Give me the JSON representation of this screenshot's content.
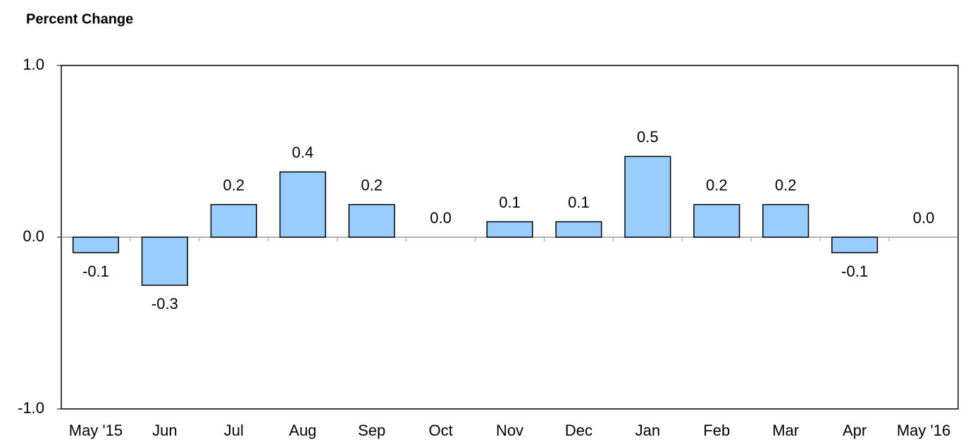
{
  "chart_data": {
    "type": "bar",
    "title": "Percent Change",
    "categories": [
      "May '15",
      "Jun",
      "Jul",
      "Aug",
      "Sep",
      "Oct",
      "Nov",
      "Dec",
      "Jan",
      "Feb",
      "Mar",
      "Apr",
      "May '16"
    ],
    "values": [
      -0.09,
      -0.28,
      0.19,
      0.38,
      0.19,
      0,
      0.09,
      0.09,
      0.47,
      0.19,
      0.19,
      -0.09,
      0
    ],
    "value_labels": [
      "-0.1",
      "-0.3",
      "0.2",
      "0.4",
      "0.2",
      "0.0",
      "0.1",
      "0.1",
      "0.5",
      "0.2",
      "0.2",
      "-0.1",
      "0.0"
    ],
    "color": "#99ccff",
    "ylim": [
      -1,
      1
    ],
    "yticks": [
      {
        "value": -1,
        "label": "-1.0"
      },
      {
        "value": 0,
        "label": "0.0"
      },
      {
        "value": 1,
        "label": "1.0"
      }
    ]
  }
}
